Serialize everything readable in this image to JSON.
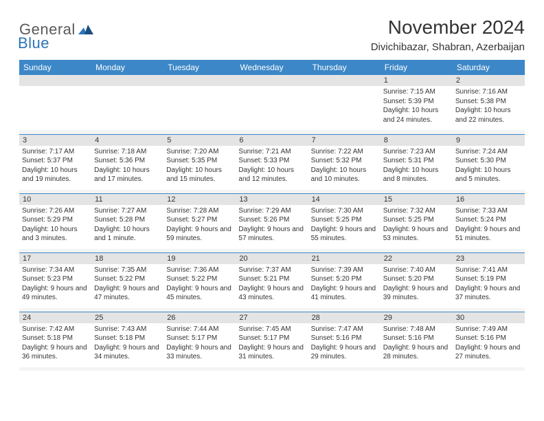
{
  "brand": {
    "general": "General",
    "blue": "Blue"
  },
  "title": "November 2024",
  "location": "Divichibazar, Shabran, Azerbaijan",
  "colors": {
    "header_bg": "#3c87c7",
    "header_text": "#ffffff",
    "daynum_bg": "#e4e4e4",
    "cell_bg": "#ffffff",
    "border": "#3c87c7",
    "text": "#333333",
    "logo_blue": "#2d73b8",
    "logo_gray": "#5a5a5a"
  },
  "typography": {
    "title_fontsize": 28,
    "location_fontsize": 15,
    "dayheader_fontsize": 12,
    "daynum_fontsize": 11,
    "body_fontsize": 10
  },
  "day_headers": [
    "Sunday",
    "Monday",
    "Tuesday",
    "Wednesday",
    "Thursday",
    "Friday",
    "Saturday"
  ],
  "weeks": [
    [
      {
        "empty": true
      },
      {
        "empty": true
      },
      {
        "empty": true
      },
      {
        "empty": true
      },
      {
        "empty": true
      },
      {
        "num": "1",
        "sunrise": "Sunrise: 7:15 AM",
        "sunset": "Sunset: 5:39 PM",
        "daylight": "Daylight: 10 hours and 24 minutes."
      },
      {
        "num": "2",
        "sunrise": "Sunrise: 7:16 AM",
        "sunset": "Sunset: 5:38 PM",
        "daylight": "Daylight: 10 hours and 22 minutes."
      }
    ],
    [
      {
        "num": "3",
        "sunrise": "Sunrise: 7:17 AM",
        "sunset": "Sunset: 5:37 PM",
        "daylight": "Daylight: 10 hours and 19 minutes."
      },
      {
        "num": "4",
        "sunrise": "Sunrise: 7:18 AM",
        "sunset": "Sunset: 5:36 PM",
        "daylight": "Daylight: 10 hours and 17 minutes."
      },
      {
        "num": "5",
        "sunrise": "Sunrise: 7:20 AM",
        "sunset": "Sunset: 5:35 PM",
        "daylight": "Daylight: 10 hours and 15 minutes."
      },
      {
        "num": "6",
        "sunrise": "Sunrise: 7:21 AM",
        "sunset": "Sunset: 5:33 PM",
        "daylight": "Daylight: 10 hours and 12 minutes."
      },
      {
        "num": "7",
        "sunrise": "Sunrise: 7:22 AM",
        "sunset": "Sunset: 5:32 PM",
        "daylight": "Daylight: 10 hours and 10 minutes."
      },
      {
        "num": "8",
        "sunrise": "Sunrise: 7:23 AM",
        "sunset": "Sunset: 5:31 PM",
        "daylight": "Daylight: 10 hours and 8 minutes."
      },
      {
        "num": "9",
        "sunrise": "Sunrise: 7:24 AM",
        "sunset": "Sunset: 5:30 PM",
        "daylight": "Daylight: 10 hours and 5 minutes."
      }
    ],
    [
      {
        "num": "10",
        "sunrise": "Sunrise: 7:26 AM",
        "sunset": "Sunset: 5:29 PM",
        "daylight": "Daylight: 10 hours and 3 minutes."
      },
      {
        "num": "11",
        "sunrise": "Sunrise: 7:27 AM",
        "sunset": "Sunset: 5:28 PM",
        "daylight": "Daylight: 10 hours and 1 minute."
      },
      {
        "num": "12",
        "sunrise": "Sunrise: 7:28 AM",
        "sunset": "Sunset: 5:27 PM",
        "daylight": "Daylight: 9 hours and 59 minutes."
      },
      {
        "num": "13",
        "sunrise": "Sunrise: 7:29 AM",
        "sunset": "Sunset: 5:26 PM",
        "daylight": "Daylight: 9 hours and 57 minutes."
      },
      {
        "num": "14",
        "sunrise": "Sunrise: 7:30 AM",
        "sunset": "Sunset: 5:25 PM",
        "daylight": "Daylight: 9 hours and 55 minutes."
      },
      {
        "num": "15",
        "sunrise": "Sunrise: 7:32 AM",
        "sunset": "Sunset: 5:25 PM",
        "daylight": "Daylight: 9 hours and 53 minutes."
      },
      {
        "num": "16",
        "sunrise": "Sunrise: 7:33 AM",
        "sunset": "Sunset: 5:24 PM",
        "daylight": "Daylight: 9 hours and 51 minutes."
      }
    ],
    [
      {
        "num": "17",
        "sunrise": "Sunrise: 7:34 AM",
        "sunset": "Sunset: 5:23 PM",
        "daylight": "Daylight: 9 hours and 49 minutes."
      },
      {
        "num": "18",
        "sunrise": "Sunrise: 7:35 AM",
        "sunset": "Sunset: 5:22 PM",
        "daylight": "Daylight: 9 hours and 47 minutes."
      },
      {
        "num": "19",
        "sunrise": "Sunrise: 7:36 AM",
        "sunset": "Sunset: 5:22 PM",
        "daylight": "Daylight: 9 hours and 45 minutes."
      },
      {
        "num": "20",
        "sunrise": "Sunrise: 7:37 AM",
        "sunset": "Sunset: 5:21 PM",
        "daylight": "Daylight: 9 hours and 43 minutes."
      },
      {
        "num": "21",
        "sunrise": "Sunrise: 7:39 AM",
        "sunset": "Sunset: 5:20 PM",
        "daylight": "Daylight: 9 hours and 41 minutes."
      },
      {
        "num": "22",
        "sunrise": "Sunrise: 7:40 AM",
        "sunset": "Sunset: 5:20 PM",
        "daylight": "Daylight: 9 hours and 39 minutes."
      },
      {
        "num": "23",
        "sunrise": "Sunrise: 7:41 AM",
        "sunset": "Sunset: 5:19 PM",
        "daylight": "Daylight: 9 hours and 37 minutes."
      }
    ],
    [
      {
        "num": "24",
        "sunrise": "Sunrise: 7:42 AM",
        "sunset": "Sunset: 5:18 PM",
        "daylight": "Daylight: 9 hours and 36 minutes."
      },
      {
        "num": "25",
        "sunrise": "Sunrise: 7:43 AM",
        "sunset": "Sunset: 5:18 PM",
        "daylight": "Daylight: 9 hours and 34 minutes."
      },
      {
        "num": "26",
        "sunrise": "Sunrise: 7:44 AM",
        "sunset": "Sunset: 5:17 PM",
        "daylight": "Daylight: 9 hours and 33 minutes."
      },
      {
        "num": "27",
        "sunrise": "Sunrise: 7:45 AM",
        "sunset": "Sunset: 5:17 PM",
        "daylight": "Daylight: 9 hours and 31 minutes."
      },
      {
        "num": "28",
        "sunrise": "Sunrise: 7:47 AM",
        "sunset": "Sunset: 5:16 PM",
        "daylight": "Daylight: 9 hours and 29 minutes."
      },
      {
        "num": "29",
        "sunrise": "Sunrise: 7:48 AM",
        "sunset": "Sunset: 5:16 PM",
        "daylight": "Daylight: 9 hours and 28 minutes."
      },
      {
        "num": "30",
        "sunrise": "Sunrise: 7:49 AM",
        "sunset": "Sunset: 5:16 PM",
        "daylight": "Daylight: 9 hours and 27 minutes."
      }
    ]
  ]
}
